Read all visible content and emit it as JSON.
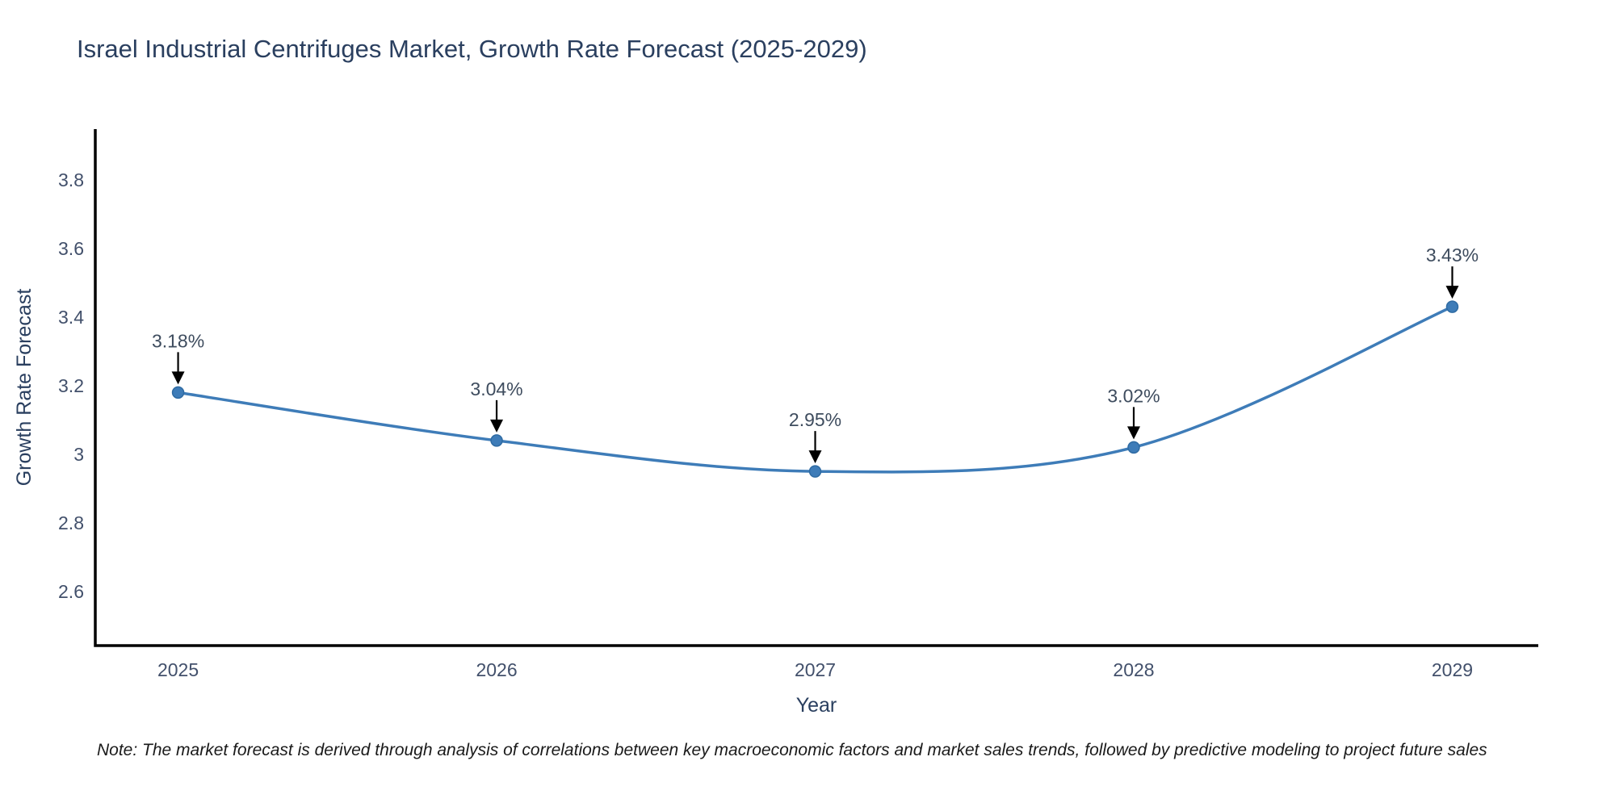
{
  "title": "Israel Industrial Centrifuges Market, Growth Rate Forecast (2025-2029)",
  "footnote": "Note: The market forecast is derived through analysis of correlations between key macroeconomic factors and market sales trends, followed by predictive modeling to project future sales",
  "chart_data": {
    "type": "line",
    "title": "Israel Industrial Centrifuges Market, Growth Rate Forecast (2025-2029)",
    "xlabel": "Year",
    "ylabel": "Growth Rate Forecast",
    "x": [
      2025,
      2026,
      2027,
      2028,
      2029
    ],
    "y": [
      3.18,
      3.04,
      2.95,
      3.02,
      3.43
    ],
    "point_labels": [
      "3.18%",
      "3.04%",
      "2.95%",
      "3.02%",
      "3.43%"
    ],
    "xticks": [
      2025,
      2026,
      2027,
      2028,
      2029
    ],
    "xtick_labels": [
      "2025",
      "2026",
      "2027",
      "2028",
      "2029"
    ],
    "yticks": [
      2.6,
      2.8,
      3.0,
      3.2,
      3.4,
      3.6,
      3.8
    ],
    "ytick_labels": [
      "2.6",
      "2.8",
      "3",
      "3.2",
      "3.4",
      "3.6",
      "3.8"
    ],
    "xlim": [
      2024.74,
      2029.27
    ],
    "ylim": [
      2.442,
      3.948
    ],
    "grid": false,
    "legend": false,
    "line_shape": "spline",
    "line_color": "#3e7cb8",
    "marker_color": "#3e7cb8",
    "marker_edge_color": "#2f6ba3",
    "axis_color": "#000000",
    "annotation_arrow_color": "#000000",
    "text_color": "#2a3f5f",
    "background_color": "#ffffff"
  }
}
